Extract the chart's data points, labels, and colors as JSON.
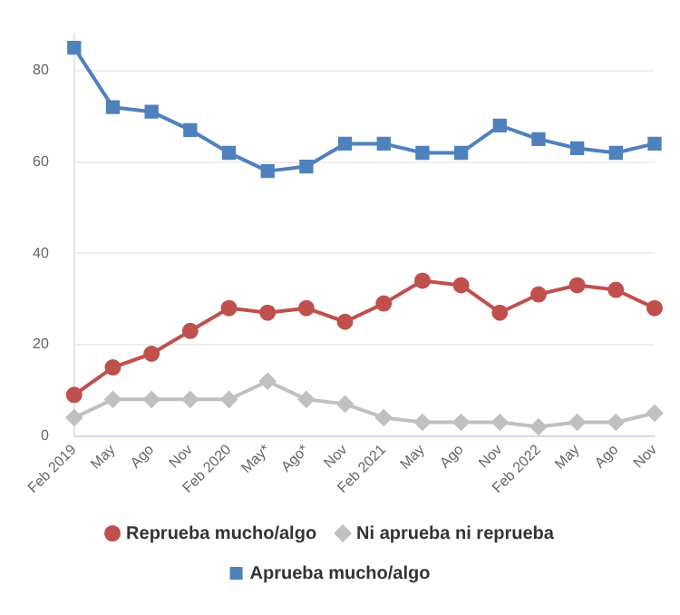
{
  "chart_data": {
    "type": "line",
    "categories": [
      "Feb 2019",
      "May",
      "Ago",
      "Nov",
      "Feb 2020",
      "May*",
      "Ago*",
      "Nov",
      "Feb 2021",
      "May",
      "Ago",
      "Nov",
      "Feb 2022",
      "May",
      "Ago",
      "Nov"
    ],
    "series": [
      {
        "name": "Reprueba mucho/algo",
        "color": "#c0504d",
        "marker": "circle",
        "values": [
          9,
          15,
          18,
          23,
          28,
          27,
          28,
          25,
          29,
          34,
          33,
          27,
          31,
          33,
          32,
          28
        ]
      },
      {
        "name": "Ni aprueba ni reprueba",
        "color": "#c0c0c0",
        "marker": "diamond",
        "values": [
          4,
          8,
          8,
          8,
          8,
          12,
          8,
          7,
          4,
          3,
          3,
          3,
          2,
          3,
          3,
          5
        ]
      },
      {
        "name": "Aprueba mucho/algo",
        "color": "#4f81bd",
        "marker": "square",
        "values": [
          85,
          72,
          71,
          67,
          62,
          58,
          59,
          64,
          64,
          62,
          62,
          68,
          65,
          63,
          62,
          64
        ]
      }
    ],
    "ylim": [
      0,
      88
    ],
    "yticks": [
      0,
      20,
      40,
      60,
      80
    ],
    "grid": "y",
    "legend": "bottom",
    "line_style": "solid"
  }
}
